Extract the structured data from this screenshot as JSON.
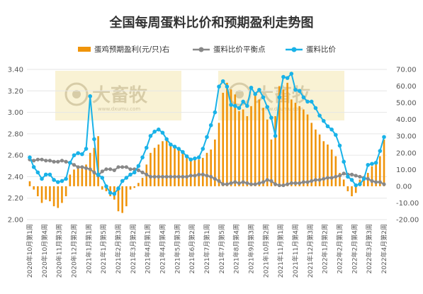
{
  "chart_data": {
    "type": "bar+line",
    "title": "全国每周蛋料比价和预期盈利走势图",
    "watermark": {
      "brand": "大畜牧",
      "url": "www.dxumu.com"
    },
    "colors": {
      "bar": "#f0940a",
      "balance": "#888888",
      "ratio": "#19b2e8",
      "watermark_bg": "#f8f1cf"
    },
    "left_axis": {
      "min": 2.0,
      "max": 3.4,
      "ticks": [
        "2.00",
        "2.20",
        "2.40",
        "2.60",
        "2.80",
        "3.00",
        "3.20",
        "3.40"
      ]
    },
    "right_axis": {
      "min": -20,
      "max": 70,
      "ticks": [
        "-20.00",
        "-10.00",
        "0.00",
        "10.00",
        "20.00",
        "30.00",
        "40.00",
        "50.00",
        "60.00",
        "70.00"
      ]
    },
    "x_tick_labels": [
      "2020年10月第1周",
      "2020年10月第4周",
      "2020年11月第3周",
      "2020年12月第2周",
      "2021年1月第1周",
      "2021年1月第5周",
      "2021年2月第3周",
      "2021年3月第2周",
      "2021年4月第1周",
      "2021年4月第4周",
      "2021年5月第3周",
      "2021年6月第2周",
      "2021年7月第1周",
      "2021年7月第5周",
      "2021年8月第4周",
      "2021年9月第3周",
      "2021年10月第2周",
      "2021年11月第1周",
      "2021年11月第4周",
      "2021年12月第3周",
      "2022年1月第2周",
      "2022年2月第1周",
      "2022年2月第4周",
      "2022年3月第3周",
      "2022年4月第2周"
    ],
    "series": [
      {
        "name": "蛋鸡预期盈利(元/只)右",
        "type": "bar",
        "axis": "right",
        "values": [
          3,
          -2,
          -6,
          -10,
          -8,
          -9,
          -12,
          -13,
          -10,
          -6,
          7,
          10,
          11,
          12,
          13,
          20,
          23,
          30,
          -2,
          -3,
          -6,
          -8,
          -15,
          -16,
          -12,
          -2,
          -1,
          2,
          5,
          13,
          20,
          23,
          25,
          27,
          28,
          26,
          24,
          22,
          20,
          18,
          17,
          16,
          16,
          17,
          20,
          22,
          28,
          38,
          56,
          62,
          58,
          55,
          45,
          46,
          42,
          48,
          55,
          52,
          47,
          40,
          28,
          42,
          60,
          58,
          62,
          52,
          50,
          48,
          46,
          43,
          38,
          34,
          31,
          27,
          25,
          22,
          18,
          8,
          4,
          -3,
          -6,
          -4,
          4,
          6,
          8,
          12,
          15,
          18,
          28
        ]
      },
      {
        "name": "蛋料比价平衡点",
        "type": "line",
        "axis": "left",
        "values": [
          2.56,
          2.55,
          2.56,
          2.56,
          2.55,
          2.55,
          2.54,
          2.54,
          2.55,
          2.54,
          2.53,
          2.51,
          2.49,
          2.49,
          2.48,
          2.47,
          2.44,
          2.41,
          2.45,
          2.47,
          2.47,
          2.46,
          2.49,
          2.49,
          2.49,
          2.47,
          2.47,
          2.46,
          2.44,
          2.42,
          2.4,
          2.4,
          2.4,
          2.4,
          2.4,
          2.4,
          2.4,
          2.4,
          2.4,
          2.4,
          2.41,
          2.41,
          2.42,
          2.42,
          2.41,
          2.4,
          2.38,
          2.36,
          2.33,
          2.33,
          2.34,
          2.35,
          2.34,
          2.35,
          2.34,
          2.33,
          2.33,
          2.34,
          2.35,
          2.37,
          2.36,
          2.33,
          2.32,
          2.32,
          2.33,
          2.34,
          2.34,
          2.34,
          2.35,
          2.35,
          2.36,
          2.37,
          2.37,
          2.38,
          2.39,
          2.39,
          2.4,
          2.41,
          2.43,
          2.42,
          2.42,
          2.41,
          2.4,
          2.39,
          2.38,
          2.36,
          2.35,
          2.35,
          2.33
        ]
      },
      {
        "name": "蛋料比价",
        "type": "line",
        "axis": "left",
        "values": [
          2.58,
          2.49,
          2.44,
          2.38,
          2.42,
          2.42,
          2.37,
          2.35,
          2.36,
          2.38,
          2.53,
          2.6,
          2.62,
          2.61,
          2.66,
          3.15,
          2.75,
          2.42,
          2.39,
          2.31,
          2.25,
          2.24,
          2.29,
          2.36,
          2.39,
          2.42,
          2.44,
          2.5,
          2.58,
          2.67,
          2.78,
          2.82,
          2.84,
          2.81,
          2.75,
          2.7,
          2.68,
          2.66,
          2.63,
          2.59,
          2.56,
          2.57,
          2.58,
          2.66,
          2.77,
          2.88,
          3.0,
          3.24,
          3.29,
          3.24,
          3.07,
          3.06,
          3.04,
          3.1,
          3.06,
          3.23,
          3.17,
          3.21,
          3.14,
          3.05,
          2.95,
          2.78,
          3.14,
          3.33,
          3.32,
          3.36,
          3.21,
          3.2,
          3.14,
          3.1,
          3.1,
          3.04,
          2.97,
          2.92,
          2.87,
          2.84,
          2.79,
          2.69,
          2.54,
          2.4,
          2.37,
          2.32,
          2.33,
          2.38,
          2.51,
          2.52,
          2.53,
          2.64,
          2.77
        ]
      }
    ]
  }
}
